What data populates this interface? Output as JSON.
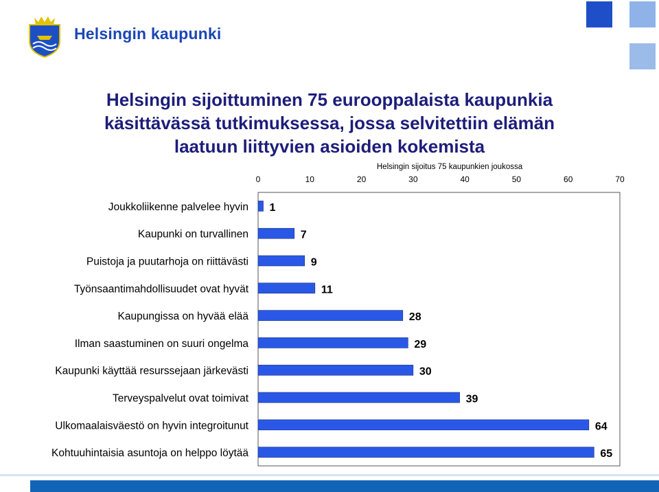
{
  "header": {
    "brand": "Helsingin kaupunki",
    "logo_icon": "helsinki-crest-icon"
  },
  "title_lines": [
    "Helsingin sijoittuminen 75 eurooppalaista kaupunkia",
    "käsittävässä tutkimuksessa, jossa selvitettiin elämän",
    "laatuun liittyvien asioiden kokemista"
  ],
  "colors": {
    "brand": "#1b46b4",
    "title": "#1d1d7a",
    "bar": "#2a58e6",
    "accent": "#1264b6"
  },
  "chart_data": {
    "type": "bar",
    "orientation": "horizontal",
    "title": "Helsingin sijoitus 75 kaupunkien joukossa",
    "xlim": [
      0,
      70
    ],
    "xticks": [
      "0",
      "10",
      "20",
      "30",
      "40",
      "50",
      "60",
      "70"
    ],
    "categories": [
      "Joukkoliikenne palvelee hyvin",
      "Kaupunki on turvallinen",
      "Puistoja ja puutarhoja on riittävästi",
      "Työnsaantimahdollisuudet ovat hyvät",
      "Kaupungissa on hyvää elää",
      "Ilman saastuminen on suuri ongelma",
      "Kaupunki käyttää resurssejaan järkevästi",
      "Terveyspalvelut ovat toimivat",
      "Ulkomaalaisväestö on hyvin integroitunut",
      "Kohtuuhintaisia asuntoja on helppo löytää"
    ],
    "values": [
      1,
      7,
      9,
      11,
      28,
      29,
      30,
      39,
      64,
      65
    ],
    "data_labels": [
      "1",
      "7",
      "9",
      "11",
      "28",
      "29",
      "30",
      "39",
      "64",
      "65"
    ],
    "legend": "none",
    "grid": false
  }
}
